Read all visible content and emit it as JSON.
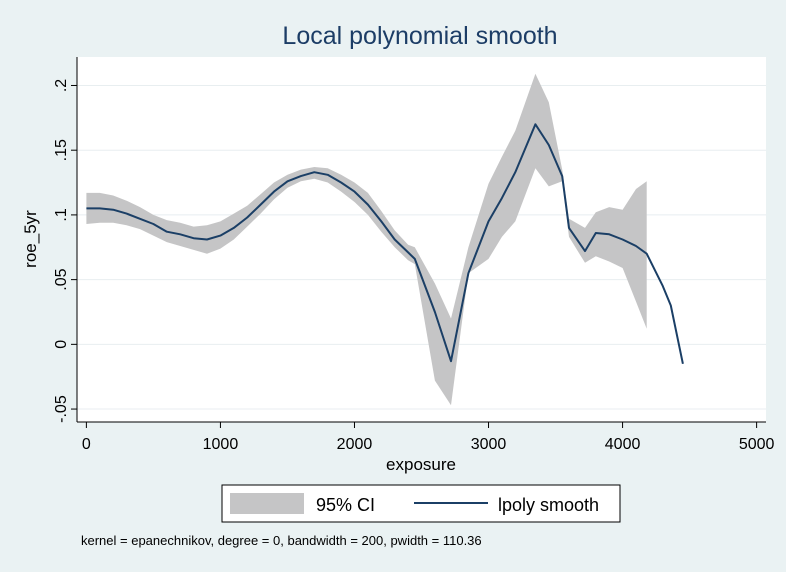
{
  "chart_data": {
    "type": "line",
    "title": "Local polynomial smooth",
    "xlabel": "exposure",
    "ylabel": "roe_5yr",
    "xlim": [
      -70,
      5070
    ],
    "ylim": [
      -0.06,
      0.222
    ],
    "xticks": [
      0,
      1000,
      2000,
      3000,
      4000,
      5000
    ],
    "xtick_labels": [
      "0",
      "1000",
      "2000",
      "3000",
      "4000",
      "5000"
    ],
    "yticks": [
      -0.05,
      0,
      0.05,
      0.1,
      0.15,
      0.2
    ],
    "ytick_labels": [
      "-.05",
      "0",
      ".05",
      ".1",
      ".15",
      ".2"
    ],
    "grid": "horizontal",
    "legend": [
      "95% CI",
      "lpoly smooth"
    ],
    "legend_position": "bottom",
    "note": "kernel = epanechnikov, degree = 0, bandwidth = 200, pwidth = 110.36",
    "colors": {
      "band": "#c5c5c6",
      "line": "#1b3f66",
      "plot_bg": "#ffffff",
      "page_bg": "#eaf2f3"
    },
    "series": [
      {
        "name": "lpoly smooth",
        "x": [
          0,
          100,
          200,
          300,
          400,
          500,
          600,
          700,
          800,
          900,
          1000,
          1100,
          1200,
          1300,
          1400,
          1500,
          1600,
          1700,
          1800,
          1900,
          2000,
          2100,
          2200,
          2300,
          2400,
          2450,
          2600,
          2720,
          2850,
          3000,
          3100,
          3200,
          3350,
          3450,
          3550,
          3600,
          3720,
          3800,
          3900,
          4000,
          4100,
          4180,
          4300,
          4360,
          4450
        ],
        "y": [
          0.105,
          0.105,
          0.104,
          0.101,
          0.097,
          0.093,
          0.087,
          0.085,
          0.082,
          0.081,
          0.084,
          0.09,
          0.098,
          0.108,
          0.118,
          0.126,
          0.13,
          0.133,
          0.131,
          0.125,
          0.118,
          0.108,
          0.095,
          0.081,
          0.071,
          0.066,
          0.025,
          -0.013,
          0.055,
          0.095,
          0.113,
          0.133,
          0.17,
          0.154,
          0.13,
          0.09,
          0.072,
          0.086,
          0.085,
          0.081,
          0.076,
          0.07,
          0.045,
          0.03,
          -0.015
        ]
      },
      {
        "name": "95% CI",
        "x": [
          0,
          100,
          200,
          300,
          400,
          500,
          600,
          700,
          800,
          900,
          1000,
          1100,
          1200,
          1300,
          1400,
          1500,
          1600,
          1700,
          1800,
          1900,
          2000,
          2100,
          2200,
          2300,
          2400,
          2450,
          2600,
          2720,
          2850,
          3000,
          3100,
          3200,
          3350,
          3450,
          3550,
          3600,
          3720,
          3800,
          3900,
          4000,
          4100,
          4180
        ],
        "lower": [
          0.093,
          0.094,
          0.094,
          0.092,
          0.089,
          0.084,
          0.079,
          0.076,
          0.073,
          0.07,
          0.074,
          0.081,
          0.091,
          0.101,
          0.112,
          0.121,
          0.126,
          0.128,
          0.125,
          0.118,
          0.11,
          0.1,
          0.087,
          0.075,
          0.065,
          0.062,
          -0.028,
          -0.047,
          0.055,
          0.066,
          0.083,
          0.095,
          0.136,
          0.122,
          0.126,
          0.083,
          0.063,
          0.068,
          0.064,
          0.059,
          0.033,
          0.012
        ],
        "upper": [
          0.117,
          0.117,
          0.115,
          0.111,
          0.106,
          0.1,
          0.096,
          0.094,
          0.091,
          0.092,
          0.095,
          0.101,
          0.107,
          0.116,
          0.125,
          0.131,
          0.135,
          0.137,
          0.136,
          0.131,
          0.125,
          0.117,
          0.103,
          0.088,
          0.077,
          0.075,
          0.047,
          0.02,
          0.075,
          0.124,
          0.145,
          0.165,
          0.209,
          0.187,
          0.135,
          0.097,
          0.09,
          0.102,
          0.106,
          0.104,
          0.12,
          0.126
        ]
      }
    ]
  }
}
